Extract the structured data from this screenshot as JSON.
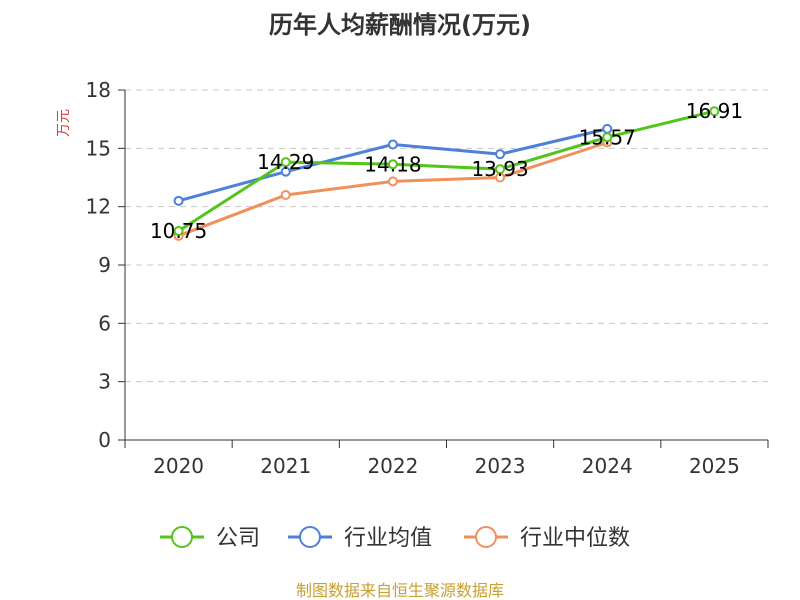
{
  "chart_data": {
    "type": "line",
    "title": "历年人均薪酬情况(万元)",
    "ylabel": "万元",
    "xlabel": "",
    "categories": [
      "2020",
      "2021",
      "2022",
      "2023",
      "2024",
      "2025"
    ],
    "ylim": [
      0,
      18
    ],
    "yticks": [
      0,
      3,
      6,
      9,
      12,
      15,
      18
    ],
    "grid": true,
    "legend_position": "bottom",
    "series": [
      {
        "name": "公司",
        "color": "#52c41a",
        "values": [
          10.75,
          14.29,
          14.18,
          13.93,
          15.57,
          16.91
        ],
        "labels": [
          "10.75",
          "14.29",
          "14.18",
          "13.93",
          "15.57",
          "16.91"
        ]
      },
      {
        "name": "行业均值",
        "color": "#4e7fd9",
        "values": [
          12.3,
          13.8,
          15.2,
          14.7,
          16.0,
          null
        ]
      },
      {
        "name": "行业中位数",
        "color": "#f0905a",
        "values": [
          10.5,
          12.6,
          13.3,
          13.5,
          15.3,
          null
        ]
      }
    ]
  },
  "source": "制图数据来自恒生聚源数据库"
}
